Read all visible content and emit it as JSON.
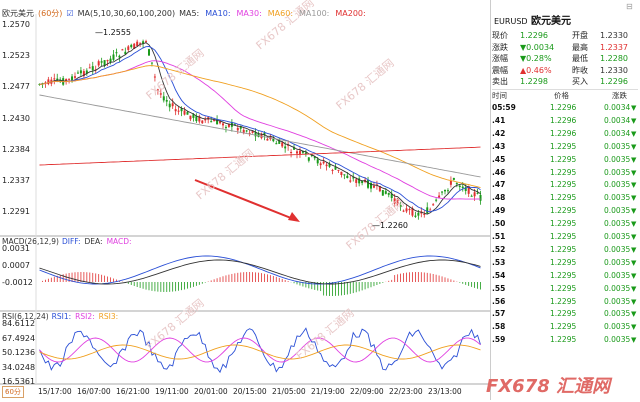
{
  "header": {
    "symbol": "欧元美元",
    "period": "(60分)",
    "ma_label": "MA(5,10,30,60,100,200)",
    "ma_items": [
      {
        "label": "MA5:",
        "color": "#333333"
      },
      {
        "label": "MA10:",
        "color": "#2a4fd6"
      },
      {
        "label": "MA30:",
        "color": "#e040e0"
      },
      {
        "label": "MA60:",
        "color": "#f0a020"
      },
      {
        "label": "MA100:",
        "color": "#999999"
      },
      {
        "label": "MA200:",
        "color": "#e03030"
      }
    ]
  },
  "price_axis": [
    "1.2570",
    "1.2523",
    "1.2477",
    "1.2430",
    "1.2384",
    "1.2337",
    "1.2291"
  ],
  "annotations": {
    "high": "1.2555",
    "low": "1.2260"
  },
  "macd": {
    "label": "MACD(26,12,9)",
    "items": [
      {
        "label": "DIFF:",
        "color": "#2a4fd6"
      },
      {
        "label": "DEA:",
        "color": "#333333"
      },
      {
        "label": "MACD:",
        "color": "#e040e0"
      }
    ],
    "axis": [
      "0.0031",
      "0.0007",
      "-0.0012"
    ]
  },
  "rsi": {
    "label": "RSI(6,12,24)",
    "items": [
      {
        "label": "RSI1:",
        "color": "#2a4fd6"
      },
      {
        "label": "RSI2:",
        "color": "#e040e0"
      },
      {
        "label": "RSI3:",
        "color": "#f0a020"
      }
    ],
    "axis": [
      "84.6112",
      "67.4924",
      "50.1236",
      "34.0248",
      "16.5361"
    ]
  },
  "x_axis": [
    "15/17:00",
    "16/07:00",
    "16/21:00",
    "19/11:00",
    "20/01:00",
    "20/15:00",
    "21/05:00",
    "21/19:00",
    "22/09:00",
    "22/23:00",
    "23/13:00"
  ],
  "period_button": "60分",
  "watermark_text": "FX678 汇通网",
  "right_panel": {
    "code": "EURUSD",
    "name": "欧元美元",
    "quote": [
      {
        "l1": "现价",
        "v1": "1.2296",
        "c1": "#1a9a1a",
        "l2": "开盘",
        "v2": "1.2330",
        "c2": "#333333"
      },
      {
        "l1": "涨跌",
        "v1": "▼0.0034",
        "c1": "#1a9a1a",
        "l2": "最高",
        "v2": "1.2337",
        "c2": "#e03030"
      },
      {
        "l1": "涨幅",
        "v1": "▼0.28%",
        "c1": "#1a9a1a",
        "l2": "最低",
        "v2": "1.2280",
        "c2": "#1a9a1a"
      },
      {
        "l1": "震幅",
        "v1": "▲0.46%",
        "c1": "#e03030",
        "l2": "昨收",
        "v2": "1.2330",
        "c2": "#333333"
      },
      {
        "l1": "卖出",
        "v1": "1.2298",
        "c1": "#1a9a1a",
        "l2": "买入",
        "v2": "1.2296",
        "c2": "#1a9a1a"
      }
    ],
    "tick_header": {
      "time": "时间",
      "price": "价格",
      "chg": "涨跌"
    },
    "ticks": [
      {
        "time": "05:59",
        "price": "1.2296",
        "chg": "0.0034"
      },
      {
        "time": ".41",
        "price": "1.2296",
        "chg": "0.0034"
      },
      {
        "time": ".42",
        "price": "1.2296",
        "chg": "0.0034"
      },
      {
        "time": ".43",
        "price": "1.2295",
        "chg": "0.0035"
      },
      {
        "time": ".45",
        "price": "1.2295",
        "chg": "0.0035"
      },
      {
        "time": ".46",
        "price": "1.2295",
        "chg": "0.0035"
      },
      {
        "time": ".47",
        "price": "1.2295",
        "chg": "0.0035"
      },
      {
        "time": ".48",
        "price": "1.2295",
        "chg": "0.0035"
      },
      {
        "time": ".49",
        "price": "1.2295",
        "chg": "0.0035"
      },
      {
        "time": ".50",
        "price": "1.2295",
        "chg": "0.0035"
      },
      {
        "time": ".51",
        "price": "1.2295",
        "chg": "0.0035"
      },
      {
        "time": ".52",
        "price": "1.2295",
        "chg": "0.0035"
      },
      {
        "time": ".53",
        "price": "1.2295",
        "chg": "0.0035"
      },
      {
        "time": ".54",
        "price": "1.2295",
        "chg": "0.0035"
      },
      {
        "time": ".55",
        "price": "1.2295",
        "chg": "0.0035"
      },
      {
        "time": ".56",
        "price": "1.2295",
        "chg": "0.0035"
      },
      {
        "time": ".57",
        "price": "1.2295",
        "chg": "0.0035"
      },
      {
        "time": ".58",
        "price": "1.2295",
        "chg": "0.0035"
      },
      {
        "time": ".59",
        "price": "1.2295",
        "chg": "0.0035"
      }
    ],
    "logo": "FX678 汇通网"
  }
}
